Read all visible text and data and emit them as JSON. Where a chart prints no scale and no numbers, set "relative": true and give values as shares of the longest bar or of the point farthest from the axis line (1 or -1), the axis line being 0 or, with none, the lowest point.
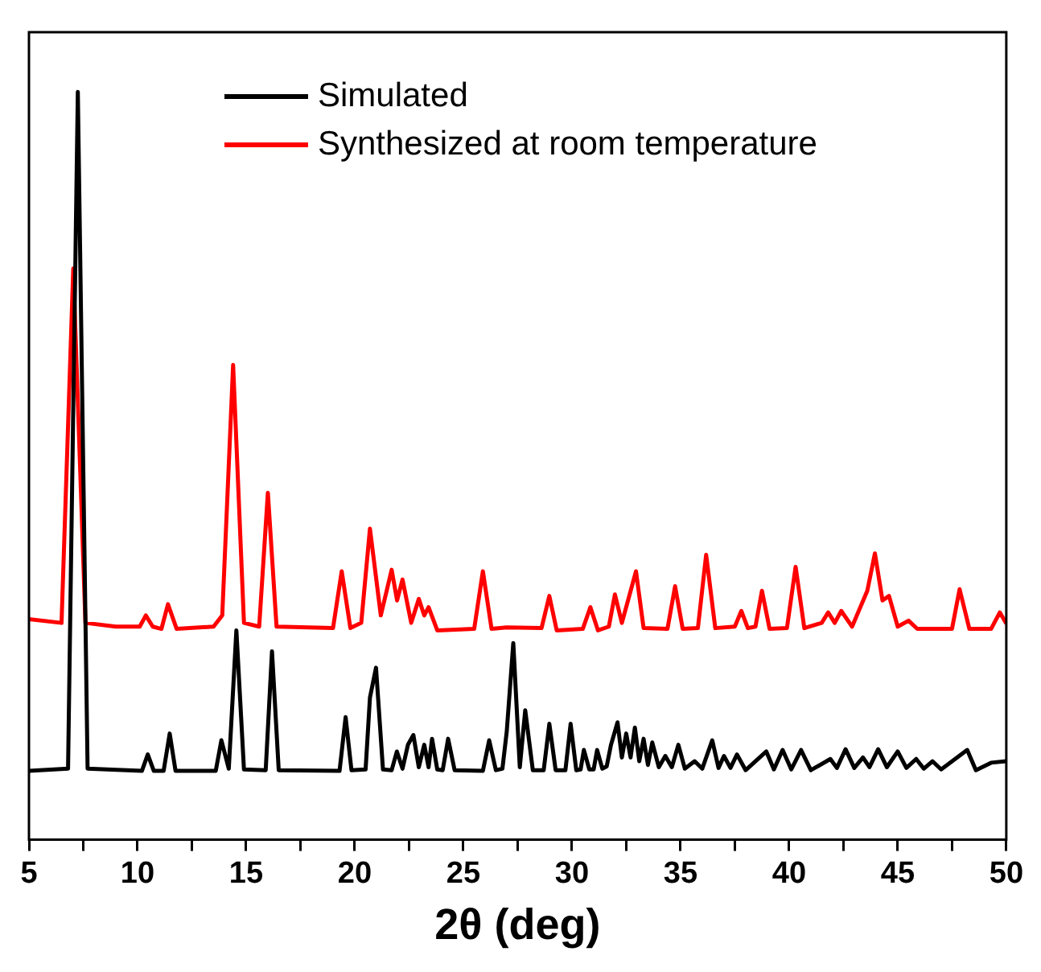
{
  "chart_data": {
    "type": "line",
    "relative": true,
    "xlabel": "2θ (deg)",
    "xlim": [
      5,
      50
    ],
    "xticks": [
      5,
      {
        "value": 7.5,
        "label": null
      },
      10,
      {
        "value": 12.5,
        "label": null
      },
      15,
      {
        "value": 17.5,
        "label": null
      },
      20,
      {
        "value": 22.5,
        "label": null
      },
      25,
      {
        "value": 27.5,
        "label": null
      },
      30,
      {
        "value": 32.5,
        "label": null
      },
      35,
      {
        "value": 37.5,
        "label": null
      },
      40,
      {
        "value": 42.5,
        "label": null
      },
      45,
      {
        "value": 47.5,
        "label": null
      },
      50
    ],
    "tick_labels": "x",
    "grid": false,
    "legend": "top",
    "marker": "none",
    "line_style": "solid",
    "series": [
      {
        "name": "Simulated",
        "color": "#000000",
        "x": [
          5,
          6.8,
          7.25,
          7.7,
          10.2,
          10.47,
          10.75,
          11.2,
          11.48,
          11.75,
          13.6,
          13.86,
          14.2,
          14.55,
          14.9,
          15.9,
          16.19,
          16.5,
          19.3,
          19.58,
          19.85,
          20.5,
          20.7,
          20.98,
          21.3,
          21.7,
          21.94,
          22.2,
          22.45,
          22.7,
          22.95,
          23.2,
          23.4,
          23.56,
          23.8,
          24.05,
          24.3,
          24.6,
          25.9,
          26.19,
          26.5,
          26.8,
          27.0,
          27.3,
          27.6,
          27.85,
          28.2,
          28.7,
          28.96,
          29.25,
          29.7,
          29.94,
          30.2,
          30.4,
          30.55,
          30.8,
          31.0,
          31.16,
          31.4,
          31.6,
          31.8,
          32.1,
          32.3,
          32.5,
          32.7,
          32.9,
          33.1,
          33.3,
          33.5,
          33.7,
          34.0,
          34.3,
          34.6,
          34.9,
          35.2,
          35.65,
          36.0,
          36.46,
          36.75,
          37.0,
          37.3,
          37.6,
          38.0,
          38.95,
          39.3,
          39.7,
          40.1,
          40.55,
          41.0,
          41.9,
          42.2,
          42.6,
          43.0,
          43.4,
          43.7,
          44.1,
          44.5,
          45.0,
          45.4,
          45.85,
          46.2,
          46.6,
          47.0,
          48.2,
          48.6,
          49.3,
          50
        ],
        "values": [
          0.092,
          0.095,
          1.0,
          0.095,
          0.092,
          0.114,
          0.092,
          0.092,
          0.142,
          0.092,
          0.092,
          0.133,
          0.095,
          0.28,
          0.094,
          0.093,
          0.252,
          0.093,
          0.092,
          0.164,
          0.093,
          0.094,
          0.19,
          0.23,
          0.094,
          0.093,
          0.118,
          0.095,
          0.127,
          0.14,
          0.097,
          0.127,
          0.097,
          0.135,
          0.094,
          0.093,
          0.135,
          0.093,
          0.092,
          0.133,
          0.093,
          0.095,
          0.145,
          0.263,
          0.097,
          0.173,
          0.093,
          0.093,
          0.155,
          0.093,
          0.093,
          0.155,
          0.093,
          0.094,
          0.12,
          0.094,
          0.094,
          0.12,
          0.095,
          0.098,
          0.127,
          0.157,
          0.11,
          0.142,
          0.11,
          0.15,
          0.105,
          0.135,
          0.1,
          0.13,
          0.097,
          0.112,
          0.097,
          0.127,
          0.095,
          0.105,
          0.095,
          0.133,
          0.096,
          0.112,
          0.096,
          0.114,
          0.093,
          0.118,
          0.094,
          0.12,
          0.094,
          0.12,
          0.093,
          0.108,
          0.096,
          0.121,
          0.096,
          0.11,
          0.097,
          0.121,
          0.097,
          0.118,
          0.096,
          0.108,
          0.095,
          0.105,
          0.094,
          0.12,
          0.093,
          0.103,
          0.105
        ]
      },
      {
        "name": "Synthesized at room temperature",
        "color": "#ff0000",
        "x": [
          5,
          6.5,
          7.04,
          7.6,
          9.0,
          10.1,
          10.38,
          10.7,
          11.1,
          11.4,
          11.8,
          13.5,
          13.9,
          14.4,
          14.9,
          15.6,
          16.0,
          16.4,
          19.0,
          19.4,
          19.8,
          20.3,
          20.7,
          21.2,
          21.7,
          21.95,
          22.2,
          22.6,
          22.95,
          23.2,
          23.4,
          23.8,
          25.5,
          25.9,
          26.3,
          27.0,
          28.6,
          28.96,
          29.3,
          30.5,
          30.85,
          31.2,
          31.7,
          31.98,
          32.3,
          32.95,
          33.3,
          34.4,
          34.75,
          35.1,
          35.8,
          36.18,
          36.6,
          37.5,
          37.8,
          38.1,
          38.45,
          38.75,
          39.1,
          39.9,
          40.3,
          40.7,
          41.5,
          41.8,
          42.1,
          42.4,
          42.9,
          43.6,
          43.95,
          44.3,
          44.6,
          45.0,
          45.5,
          45.9,
          47.5,
          47.85,
          48.3,
          49.3,
          49.7,
          50
        ],
        "values": [
          0.295,
          0.29,
          0.764,
          0.29,
          0.285,
          0.285,
          0.3,
          0.285,
          0.282,
          0.315,
          0.282,
          0.285,
          0.3,
          0.635,
          0.29,
          0.285,
          0.464,
          0.285,
          0.283,
          0.359,
          0.283,
          0.29,
          0.416,
          0.3,
          0.361,
          0.32,
          0.348,
          0.29,
          0.322,
          0.3,
          0.311,
          0.28,
          0.282,
          0.359,
          0.282,
          0.284,
          0.283,
          0.326,
          0.28,
          0.282,
          0.311,
          0.28,
          0.285,
          0.328,
          0.29,
          0.359,
          0.283,
          0.282,
          0.339,
          0.282,
          0.283,
          0.381,
          0.283,
          0.285,
          0.306,
          0.283,
          0.285,
          0.333,
          0.282,
          0.283,
          0.365,
          0.283,
          0.29,
          0.304,
          0.29,
          0.306,
          0.285,
          0.333,
          0.383,
          0.32,
          0.326,
          0.285,
          0.293,
          0.282,
          0.282,
          0.335,
          0.282,
          0.282,
          0.304,
          0.289
        ]
      }
    ]
  }
}
